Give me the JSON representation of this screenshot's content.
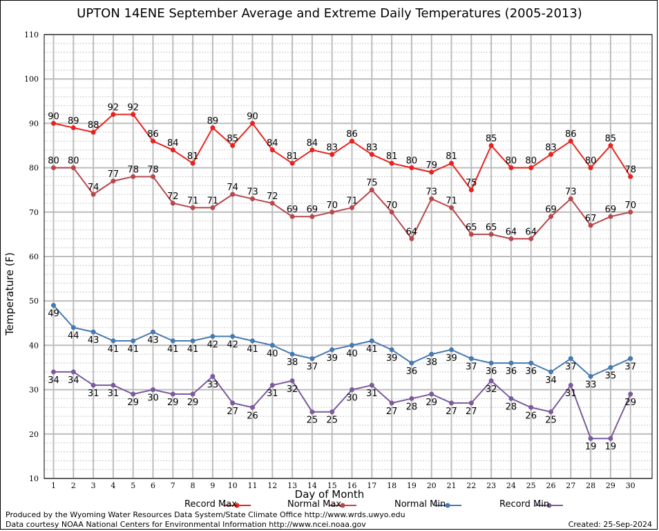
{
  "chart_data": {
    "type": "line",
    "title": "UPTON 14ENE September Average and Extreme Daily Temperatures (2005-2013)",
    "xlabel": "Day of Month",
    "ylabel": "Temperature (F)",
    "ylim": [
      10,
      110
    ],
    "yticks": [
      10,
      20,
      30,
      40,
      50,
      60,
      70,
      80,
      90,
      100,
      110
    ],
    "x": [
      1,
      2,
      3,
      4,
      5,
      6,
      7,
      8,
      9,
      10,
      11,
      12,
      13,
      14,
      15,
      16,
      17,
      18,
      19,
      20,
      21,
      22,
      23,
      24,
      25,
      26,
      27,
      28,
      29,
      30
    ],
    "grid": true,
    "legend_position": "bottom",
    "series": [
      {
        "name": "Record Max",
        "color": "#e8211d",
        "label_position": "above",
        "values": [
          90,
          89,
          88,
          92,
          92,
          86,
          84,
          81,
          89,
          85,
          90,
          84,
          81,
          84,
          83,
          86,
          83,
          81,
          80,
          79,
          81,
          75,
          85,
          80,
          80,
          83,
          86,
          80,
          85,
          78
        ]
      },
      {
        "name": "Normal Max",
        "color": "#b8464a",
        "label_position": "above",
        "values": [
          80,
          80,
          74,
          77,
          78,
          78,
          72,
          71,
          71,
          74,
          73,
          72,
          69,
          69,
          70,
          71,
          75,
          70,
          64,
          73,
          71,
          65,
          65,
          64,
          64,
          69,
          73,
          67,
          69,
          70
        ]
      },
      {
        "name": "Normal Min",
        "color": "#4679b0",
        "label_position": "below",
        "values": [
          49,
          44,
          43,
          41,
          41,
          43,
          41,
          41,
          42,
          42,
          41,
          40,
          38,
          37,
          39,
          40,
          41,
          39,
          36,
          38,
          39,
          37,
          36,
          36,
          36,
          34,
          37,
          33,
          35,
          37
        ]
      },
      {
        "name": "Record Min",
        "color": "#7a5a9c",
        "label_position": "below",
        "values": [
          34,
          34,
          31,
          31,
          29,
          30,
          29,
          29,
          33,
          27,
          26,
          31,
          32,
          25,
          25,
          30,
          31,
          27,
          28,
          29,
          27,
          27,
          32,
          28,
          26,
          25,
          31,
          19,
          19,
          29
        ]
      }
    ]
  },
  "footer": {
    "produced_by": "Produced by the Wyoming Water Resources Data System/State Climate Office http://www.wrds.uwyo.edu",
    "data_courtesy": "Data courtesy NOAA National Centers for Environmental Information http://www.ncei.noaa.gov",
    "created": "Created: 25-Sep-2024"
  }
}
